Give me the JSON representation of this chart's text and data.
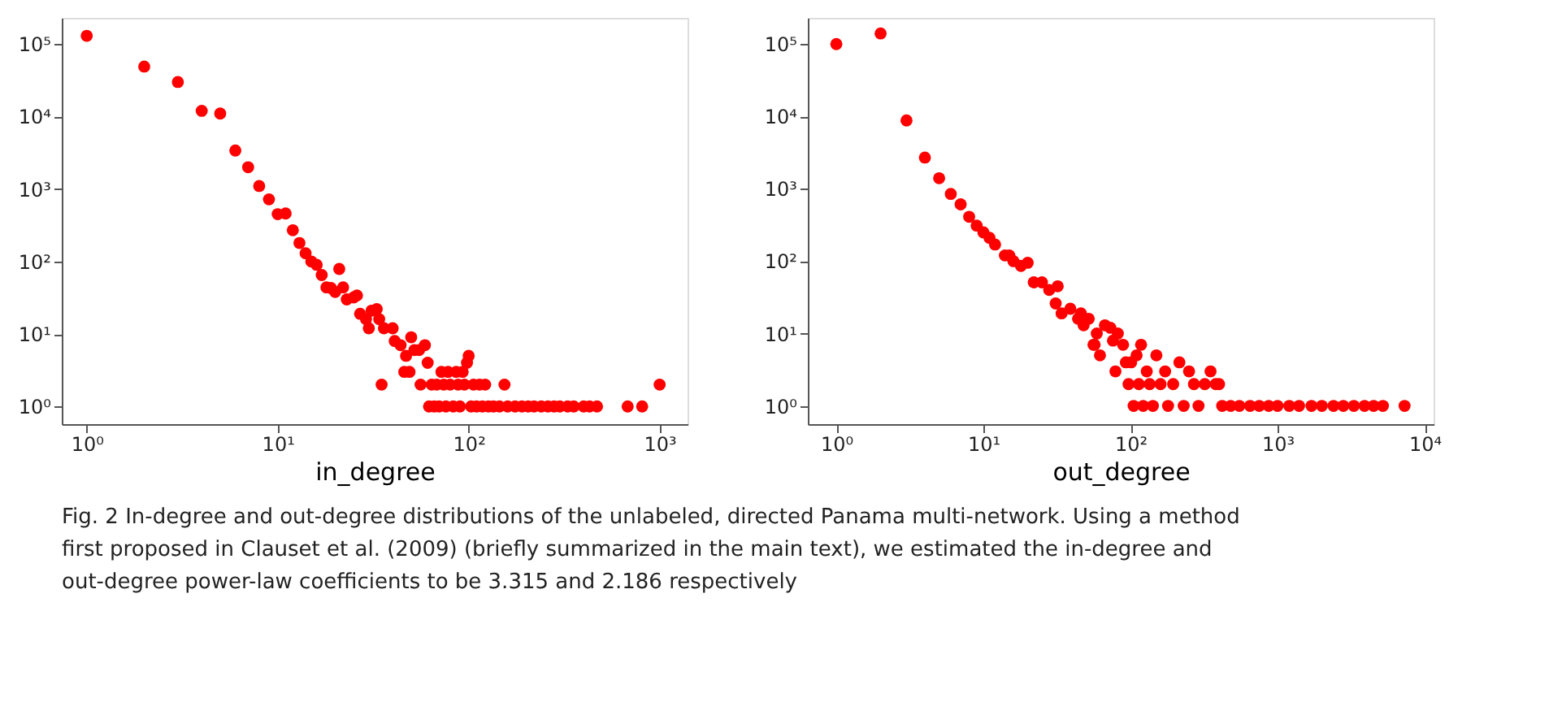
{
  "chart_data": [
    {
      "type": "scatter",
      "xlabel": "in_degree",
      "log": "xy",
      "grid": false,
      "legend": false,
      "marker": "circle",
      "xlim": [
        0.74,
        1400
      ],
      "ylim": [
        0.57,
        230000
      ],
      "xticks": [
        {
          "value": 1,
          "label": "10⁰"
        },
        {
          "value": 10,
          "label": "10¹"
        },
        {
          "value": 100,
          "label": "10²"
        },
        {
          "value": 1000,
          "label": "10³"
        }
      ],
      "yticks": [
        {
          "value": 1,
          "label": "10⁰"
        },
        {
          "value": 10,
          "label": "10¹"
        },
        {
          "value": 100,
          "label": "10²"
        },
        {
          "value": 1000,
          "label": "10³"
        },
        {
          "value": 10000,
          "label": "10⁴"
        },
        {
          "value": 100000,
          "label": "10⁵"
        }
      ],
      "series": [
        {
          "color": "#ff0000",
          "x": [
            1,
            2,
            3,
            4,
            5,
            6,
            7,
            8,
            9,
            10,
            11,
            12,
            13,
            14,
            15,
            16,
            17,
            18,
            19,
            20,
            21,
            22,
            23,
            25,
            26,
            27,
            29,
            30,
            31,
            33,
            34,
            35,
            36,
            40,
            41,
            44,
            46,
            47,
            49,
            50,
            52,
            55,
            56,
            59,
            61,
            62,
            64,
            66,
            68,
            70,
            72,
            74,
            76,
            78,
            80,
            83,
            86,
            88,
            90,
            93,
            95,
            98,
            100,
            103,
            106,
            110,
            114,
            118,
            122,
            127,
            135,
            145,
            154,
            160,
            175,
            190,
            205,
            220,
            240,
            260,
            280,
            300,
            330,
            355,
            400,
            430,
            470,
            680,
            810,
            1000
          ],
          "values": [
            130000,
            49000,
            30000,
            12000,
            11000,
            3400,
            2000,
            1100,
            720,
            450,
            460,
            270,
            180,
            130,
            100,
            90,
            65,
            44,
            43,
            38,
            79,
            44,
            30,
            32,
            34,
            19,
            16,
            12,
            21,
            22,
            16,
            2,
            12,
            12,
            8,
            7,
            3,
            5,
            3,
            9,
            6,
            6,
            2,
            7,
            4,
            1,
            2,
            1,
            2,
            1,
            3,
            2,
            1,
            3,
            2,
            1,
            3,
            2,
            1,
            3,
            2,
            4,
            5,
            1,
            2,
            1,
            2,
            1,
            2,
            1,
            1,
            1,
            2,
            1,
            1,
            1,
            1,
            1,
            1,
            1,
            1,
            1,
            1,
            1,
            1,
            1,
            1,
            1,
            1,
            2
          ]
        }
      ],
      "annotations": [
        "Fig. 2  In-degree and out-degree distributions of the unlabeled, directed Panama multi-network. Using a method first proposed in Clauset et al. (2009) (briefly summarized in the main text), we estimated the in-degree and out-degree power-law coefficients to be 3.315 and 2.186 respectively"
      ]
    },
    {
      "type": "scatter",
      "xlabel": "out_degree",
      "log": "xy",
      "grid": false,
      "legend": false,
      "marker": "circle",
      "xlim": [
        0.64,
        11500
      ],
      "ylim": [
        0.56,
        230000
      ],
      "xticks": [
        {
          "value": 1,
          "label": "10⁰"
        },
        {
          "value": 10,
          "label": "10¹"
        },
        {
          "value": 100,
          "label": "10²"
        },
        {
          "value": 1000,
          "label": "10³"
        },
        {
          "value": 10000,
          "label": "10⁴"
        }
      ],
      "yticks": [
        {
          "value": 1,
          "label": "10⁰"
        },
        {
          "value": 10,
          "label": "10¹"
        },
        {
          "value": 100,
          "label": "10²"
        },
        {
          "value": 1000,
          "label": "10³"
        },
        {
          "value": 10000,
          "label": "10⁴"
        },
        {
          "value": 100000,
          "label": "10⁵"
        }
      ],
      "series": [
        {
          "color": "#ff0000",
          "x": [
            1,
            2,
            3,
            4,
            5,
            6,
            7,
            8,
            9,
            10,
            11,
            12,
            14,
            15,
            16,
            18,
            20,
            22,
            25,
            28,
            31,
            32,
            34,
            39,
            44,
            46,
            48,
            52,
            56,
            57,
            59,
            62,
            67,
            73,
            76,
            79,
            82,
            89,
            93,
            97,
            101,
            105,
            110,
            114,
            118,
            122,
            129,
            135,
            142,
            150,
            160,
            172,
            180,
            195,
            215,
            230,
            250,
            270,
            290,
            320,
            350,
            380,
            400,
            420,
            480,
            550,
            650,
            750,
            870,
            1000,
            1200,
            1400,
            1700,
            2000,
            2400,
            2800,
            3300,
            3900,
            4500,
            5200,
            7300
          ],
          "values": [
            100000,
            140000,
            8800,
            2700,
            1400,
            850,
            610,
            410,
            310,
            250,
            210,
            170,
            120,
            120,
            100,
            86,
            95,
            51,
            51,
            40,
            26,
            45,
            19,
            22,
            16,
            19,
            13,
            16,
            7,
            7,
            10,
            5,
            13,
            12,
            8,
            3,
            10,
            7,
            4,
            2,
            4,
            1,
            5,
            2,
            7,
            1,
            3,
            2,
            1,
            5,
            2,
            3,
            1,
            2,
            4,
            1,
            3,
            2,
            1,
            2,
            3,
            2,
            2,
            1,
            1,
            1,
            1,
            1,
            1,
            1,
            1,
            1,
            1,
            1,
            1,
            1,
            1,
            1,
            1,
            1,
            1
          ]
        }
      ]
    }
  ]
}
